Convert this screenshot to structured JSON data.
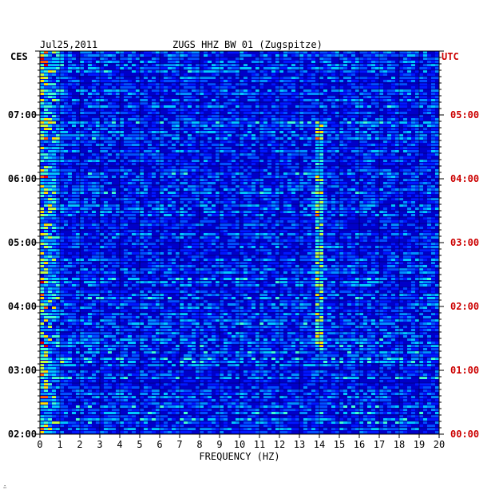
{
  "chart_data": {
    "type": "heatmap",
    "date": "Jul25,2011",
    "title": "ZUGS HHZ BW 01 (Zugspitze)",
    "left_axis_label": "CES",
    "right_axis_label": "UTC",
    "xlabel": "FREQUENCY (HZ)",
    "x_range": [
      0,
      20
    ],
    "x_ticks": [
      "0",
      "1",
      "2",
      "3",
      "4",
      "5",
      "6",
      "7",
      "8",
      "9",
      "10",
      "11",
      "12",
      "13",
      "14",
      "15",
      "16",
      "17",
      "18",
      "19",
      "20"
    ],
    "y_left_ticks": [
      "07:00",
      "06:00",
      "05:00",
      "04:00",
      "03:00",
      "02:00"
    ],
    "y_right_ticks": [
      "05:00",
      "04:00",
      "03:00",
      "02:00",
      "01:00",
      "00:00"
    ],
    "colors": {
      "background": "#0000c8",
      "left_ticks": "#000000",
      "right_ticks": "#cc0000",
      "grid": "#000000"
    }
  },
  "corner_mark": "∴"
}
